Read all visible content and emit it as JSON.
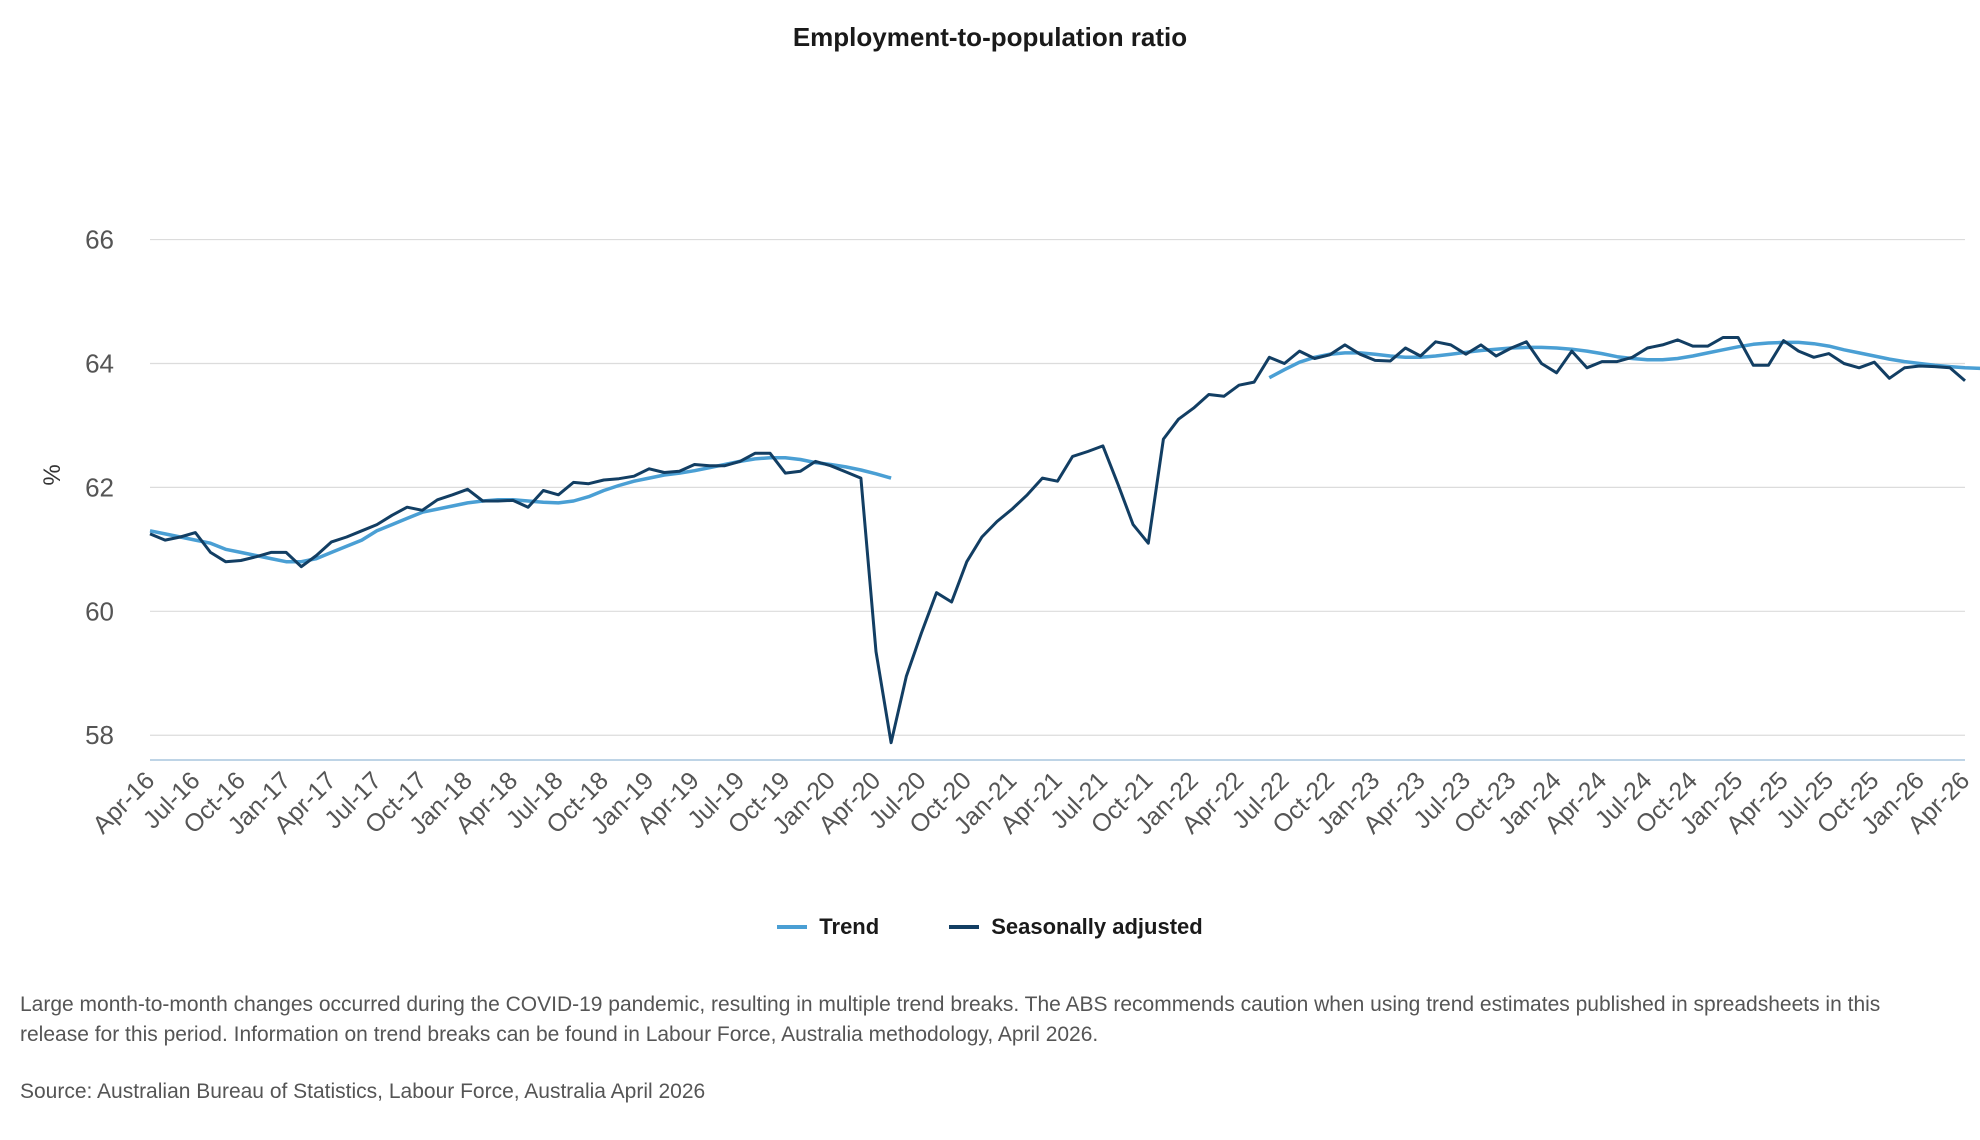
{
  "chart_data": {
    "type": "line",
    "title": "Employment-to-population ratio",
    "xlabel": "",
    "ylabel": "%",
    "ylim": [
      57.6,
      66.8
    ],
    "yticks": [
      58,
      60,
      62,
      64,
      66
    ],
    "grid": "horizontal",
    "legend_position": "bottom",
    "x_start": "Apr-16",
    "x_tick_labels": [
      "Apr-16",
      "Jul-16",
      "Oct-16",
      "Jan-17",
      "Apr-17",
      "Jul-17",
      "Oct-17",
      "Jan-18",
      "Apr-18",
      "Jul-18",
      "Oct-18",
      "Jan-19",
      "Apr-19",
      "Jul-19",
      "Oct-19",
      "Jan-20",
      "Apr-20",
      "Jul-20",
      "Oct-20",
      "Jan-21",
      "Apr-21",
      "Jul-21",
      "Oct-21",
      "Jan-22",
      "Apr-22",
      "Jul-22",
      "Oct-22",
      "Jan-23",
      "Apr-23",
      "Jul-23",
      "Oct-23",
      "Jan-24",
      "Apr-24",
      "Jul-24",
      "Oct-24",
      "Jan-25",
      "Apr-25",
      "Jul-25",
      "Oct-25",
      "Jan-26",
      "Apr-26"
    ],
    "series": [
      {
        "name": "Trend",
        "color": "#4a9fd4",
        "values": [
          61.3,
          61.25,
          61.2,
          61.15,
          61.1,
          61.0,
          60.95,
          60.9,
          60.85,
          60.8,
          60.8,
          60.85,
          60.95,
          61.05,
          61.15,
          61.3,
          61.4,
          61.5,
          61.6,
          61.65,
          61.7,
          61.75,
          61.78,
          61.8,
          61.8,
          61.78,
          61.76,
          61.75,
          61.78,
          61.85,
          61.95,
          62.03,
          62.1,
          62.15,
          62.2,
          62.23,
          62.27,
          62.32,
          62.37,
          62.42,
          62.46,
          62.48,
          62.48,
          62.45,
          62.4,
          62.37,
          62.33,
          62.28,
          62.22,
          62.15,
          null,
          null,
          null,
          null,
          null,
          null,
          null,
          null,
          null,
          null,
          null,
          null,
          null,
          null,
          null,
          null,
          null,
          null,
          null,
          null,
          null,
          null,
          null,
          null,
          63.77,
          63.9,
          64.02,
          64.1,
          64.15,
          64.17,
          64.17,
          64.15,
          64.12,
          64.1,
          64.1,
          64.12,
          64.15,
          64.18,
          64.21,
          64.23,
          64.25,
          64.26,
          64.26,
          64.25,
          64.23,
          64.2,
          64.16,
          64.11,
          64.08,
          64.06,
          64.06,
          64.08,
          64.12,
          64.17,
          64.22,
          64.27,
          64.31,
          64.33,
          64.34,
          64.34,
          64.32,
          64.28,
          64.22,
          64.17,
          64.12,
          64.07,
          64.03,
          64.0,
          63.97,
          63.95,
          63.93,
          63.92,
          63.9,
          63.88,
          63.86,
          63.82
        ]
      },
      {
        "name": "Seasonally adjusted",
        "color": "#123e63",
        "values": [
          61.25,
          61.15,
          61.2,
          61.27,
          60.95,
          60.8,
          60.82,
          60.88,
          60.95,
          60.95,
          60.72,
          60.9,
          61.12,
          61.2,
          61.3,
          61.4,
          61.55,
          61.68,
          61.63,
          61.8,
          61.88,
          61.97,
          61.78,
          61.78,
          61.79,
          61.68,
          61.95,
          61.88,
          62.08,
          62.06,
          62.12,
          62.14,
          62.18,
          62.3,
          62.24,
          62.26,
          62.37,
          62.35,
          62.35,
          62.42,
          62.55,
          62.55,
          62.23,
          62.26,
          62.42,
          62.35,
          62.25,
          62.15,
          59.35,
          57.88,
          58.95,
          59.65,
          60.3,
          60.15,
          60.8,
          61.2,
          61.45,
          61.65,
          61.88,
          62.15,
          62.1,
          62.5,
          62.58,
          62.67,
          62.05,
          61.4,
          61.1,
          62.78,
          63.1,
          63.28,
          63.5,
          63.47,
          63.65,
          63.7,
          64.1,
          64.0,
          64.2,
          64.08,
          64.14,
          64.3,
          64.15,
          64.05,
          64.04,
          64.25,
          64.12,
          64.35,
          64.3,
          64.15,
          64.3,
          64.12,
          64.25,
          64.35,
          64.0,
          63.85,
          64.2,
          63.93,
          64.03,
          64.03,
          64.1,
          64.25,
          64.3,
          64.38,
          64.28,
          64.28,
          64.42,
          64.42,
          63.97,
          63.97,
          64.37,
          64.2,
          64.1,
          64.16,
          64.0,
          63.93,
          64.02,
          63.76,
          63.93,
          63.96,
          63.95,
          63.93,
          63.72
        ]
      }
    ],
    "footnote": "Large month-to-month changes occurred during the COVID-19 pandemic, resulting in multiple trend breaks. The ABS recommends caution when using trend estimates published in spreadsheets in this release for this period. Information on trend breaks can be found in Labour Force, Australia methodology, April 2026.",
    "source": "Source: Australian Bureau of Statistics, Labour Force, Australia April 2026"
  }
}
